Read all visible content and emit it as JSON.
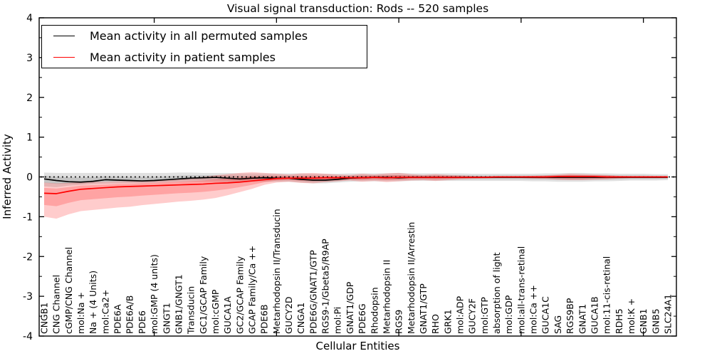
{
  "chart_data": {
    "type": "line",
    "title": "Visual signal transduction: Rods -- 520 samples",
    "xlabel": "Cellular Entities",
    "ylabel": "Inferred Activity",
    "ylim": [
      -4,
      4
    ],
    "yticks": [
      4,
      3,
      2,
      1,
      0,
      -1,
      -2,
      -3,
      -4
    ],
    "grid": false,
    "legend_position": "upper left",
    "zero_line": {
      "value": 0,
      "style": "dotted",
      "color": "#000000"
    },
    "categories": [
      "CNGB1",
      "CNG Channel",
      "cGMP/CNG Channel",
      "mol:Na +",
      "Na + (4 Units)",
      "mol:Ca2+",
      "PDE6A",
      "PDE6A/B",
      "PDE6",
      "mol:GMP (4 units)",
      "GNGT1",
      "GNB1/GNGT1",
      "Transducin",
      "GC1/GCAP Family",
      "mol:cGMP",
      "GUCA1A",
      "GC2/GCAP Family",
      "GCAP Family/Ca ++",
      "PDE6B",
      "Metarhodopsin II/Transducin",
      "GUCY2D",
      "CNGA1",
      "PDE6G/GNAT1/GTP",
      "RGS9-1/Gbeta5/R9AP",
      "mol:Pi",
      "GNAT1/GDP",
      "PDE6G",
      "Rhodopsin",
      "Metarhodopsin II",
      "RGS9",
      "Metarhodopsin II/Arrestin",
      "GNAT1/GTP",
      "RHO",
      "GRK1",
      "mol:ADP",
      "GUCY2F",
      "mol:GTP",
      "absorption of light",
      "mol:GDP",
      "mol:all-trans-retinal",
      "mol:Ca ++",
      "GUCA1C",
      "SAG",
      "RGS9BP",
      "GNAT1",
      "GUCA1B",
      "mol:11-cis-retinal",
      "RDH5",
      "mol:K +",
      "GNB1",
      "GNB5",
      "SLC24A1"
    ],
    "series": [
      {
        "name": "Mean activity in all permuted samples",
        "color": "#000000",
        "band_color": "rgba(0,0,0,0.12)",
        "values": [
          -0.05,
          -0.09,
          -0.12,
          -0.13,
          -0.11,
          -0.07,
          -0.08,
          -0.09,
          -0.1,
          -0.09,
          -0.07,
          -0.05,
          -0.03,
          -0.02,
          -0.01,
          -0.03,
          -0.05,
          -0.03,
          -0.02,
          -0.03,
          -0.03,
          -0.06,
          -0.08,
          -0.08,
          -0.06,
          -0.03,
          -0.02,
          -0.01,
          -0.01,
          -0.02,
          -0.01,
          -0.01,
          -0.01,
          -0.01,
          -0.01,
          -0.01,
          -0.01,
          -0.01,
          -0.01,
          -0.01,
          -0.01,
          -0.01,
          -0.01,
          -0.01,
          -0.01,
          -0.01,
          -0.01,
          -0.01,
          -0.01,
          -0.01,
          -0.01,
          -0.01
        ],
        "band_upper": [
          0.11,
          0.1,
          0.1,
          0.1,
          0.1,
          0.1,
          0.1,
          0.1,
          0.1,
          0.1,
          0.1,
          0.11,
          0.11,
          0.1,
          0.1,
          0.1,
          0.09,
          0.09,
          0.09,
          0.09,
          0.09,
          0.09,
          0.08,
          0.08,
          0.08,
          0.09,
          0.09,
          0.09,
          0.09,
          0.1,
          0.09,
          0.09,
          0.09,
          0.09,
          0.09,
          0.08,
          0.08,
          0.08,
          0.08,
          0.08,
          0.08,
          0.09,
          0.09,
          0.1,
          0.1,
          0.09,
          0.09,
          0.08,
          0.08,
          0.08,
          0.07,
          0.07
        ],
        "band_lower": [
          -0.24,
          -0.26,
          -0.22,
          -0.2,
          -0.18,
          -0.17,
          -0.16,
          -0.16,
          -0.16,
          -0.15,
          -0.14,
          -0.13,
          -0.12,
          -0.12,
          -0.12,
          -0.13,
          -0.14,
          -0.12,
          -0.12,
          -0.12,
          -0.12,
          -0.14,
          -0.16,
          -0.16,
          -0.14,
          -0.12,
          -0.11,
          -0.11,
          -0.11,
          -0.11,
          -0.1,
          -0.1,
          -0.1,
          -0.1,
          -0.1,
          -0.1,
          -0.1,
          -0.1,
          -0.1,
          -0.1,
          -0.11,
          -0.11,
          -0.12,
          -0.12,
          -0.12,
          -0.11,
          -0.11,
          -0.1,
          -0.09,
          -0.09,
          -0.09,
          -0.08
        ]
      },
      {
        "name": "Mean activity in patient samples",
        "color": "#ff0000",
        "band_color": "rgba(255,0,0,0.20)",
        "values": [
          -0.41,
          -0.42,
          -0.36,
          -0.31,
          -0.29,
          -0.27,
          -0.25,
          -0.24,
          -0.23,
          -0.22,
          -0.21,
          -0.2,
          -0.19,
          -0.18,
          -0.16,
          -0.15,
          -0.13,
          -0.1,
          -0.07,
          -0.04,
          -0.03,
          -0.03,
          -0.03,
          -0.02,
          -0.02,
          -0.02,
          -0.02,
          -0.01,
          -0.02,
          -0.01,
          -0.01,
          -0.01,
          -0.01,
          -0.01,
          -0.01,
          -0.01,
          -0.01,
          0.0,
          0.0,
          0.0,
          0.0,
          0.0,
          0.01,
          0.01,
          0.01,
          0.01,
          0.0,
          0.0,
          0.0,
          0.0,
          0.0,
          0.0
        ],
        "band_upper": [
          -0.14,
          -0.16,
          -0.15,
          -0.13,
          -0.12,
          -0.12,
          -0.11,
          -0.11,
          -0.09,
          -0.08,
          -0.06,
          -0.04,
          -0.02,
          0.0,
          0.04,
          0.07,
          0.1,
          0.12,
          0.1,
          0.08,
          0.06,
          0.09,
          0.1,
          0.08,
          0.06,
          0.05,
          0.08,
          0.06,
          0.09,
          0.1,
          0.07,
          0.05,
          0.07,
          0.05,
          0.04,
          0.03,
          0.02,
          0.02,
          0.02,
          0.02,
          0.03,
          0.04,
          0.06,
          0.08,
          0.07,
          0.06,
          0.05,
          0.03,
          0.02,
          0.02,
          0.02,
          0.02
        ],
        "band_lower": [
          -1.0,
          -1.05,
          -0.94,
          -0.86,
          -0.83,
          -0.8,
          -0.77,
          -0.75,
          -0.71,
          -0.68,
          -0.65,
          -0.62,
          -0.6,
          -0.57,
          -0.53,
          -0.46,
          -0.38,
          -0.3,
          -0.2,
          -0.14,
          -0.12,
          -0.15,
          -0.16,
          -0.13,
          -0.11,
          -0.09,
          -0.12,
          -0.1,
          -0.13,
          -0.11,
          -0.09,
          -0.08,
          -0.1,
          -0.08,
          -0.06,
          -0.05,
          -0.04,
          -0.03,
          -0.03,
          -0.03,
          -0.04,
          -0.05,
          -0.07,
          -0.08,
          -0.08,
          -0.07,
          -0.06,
          -0.04,
          -0.03,
          -0.03,
          -0.03,
          -0.03
        ]
      }
    ]
  }
}
